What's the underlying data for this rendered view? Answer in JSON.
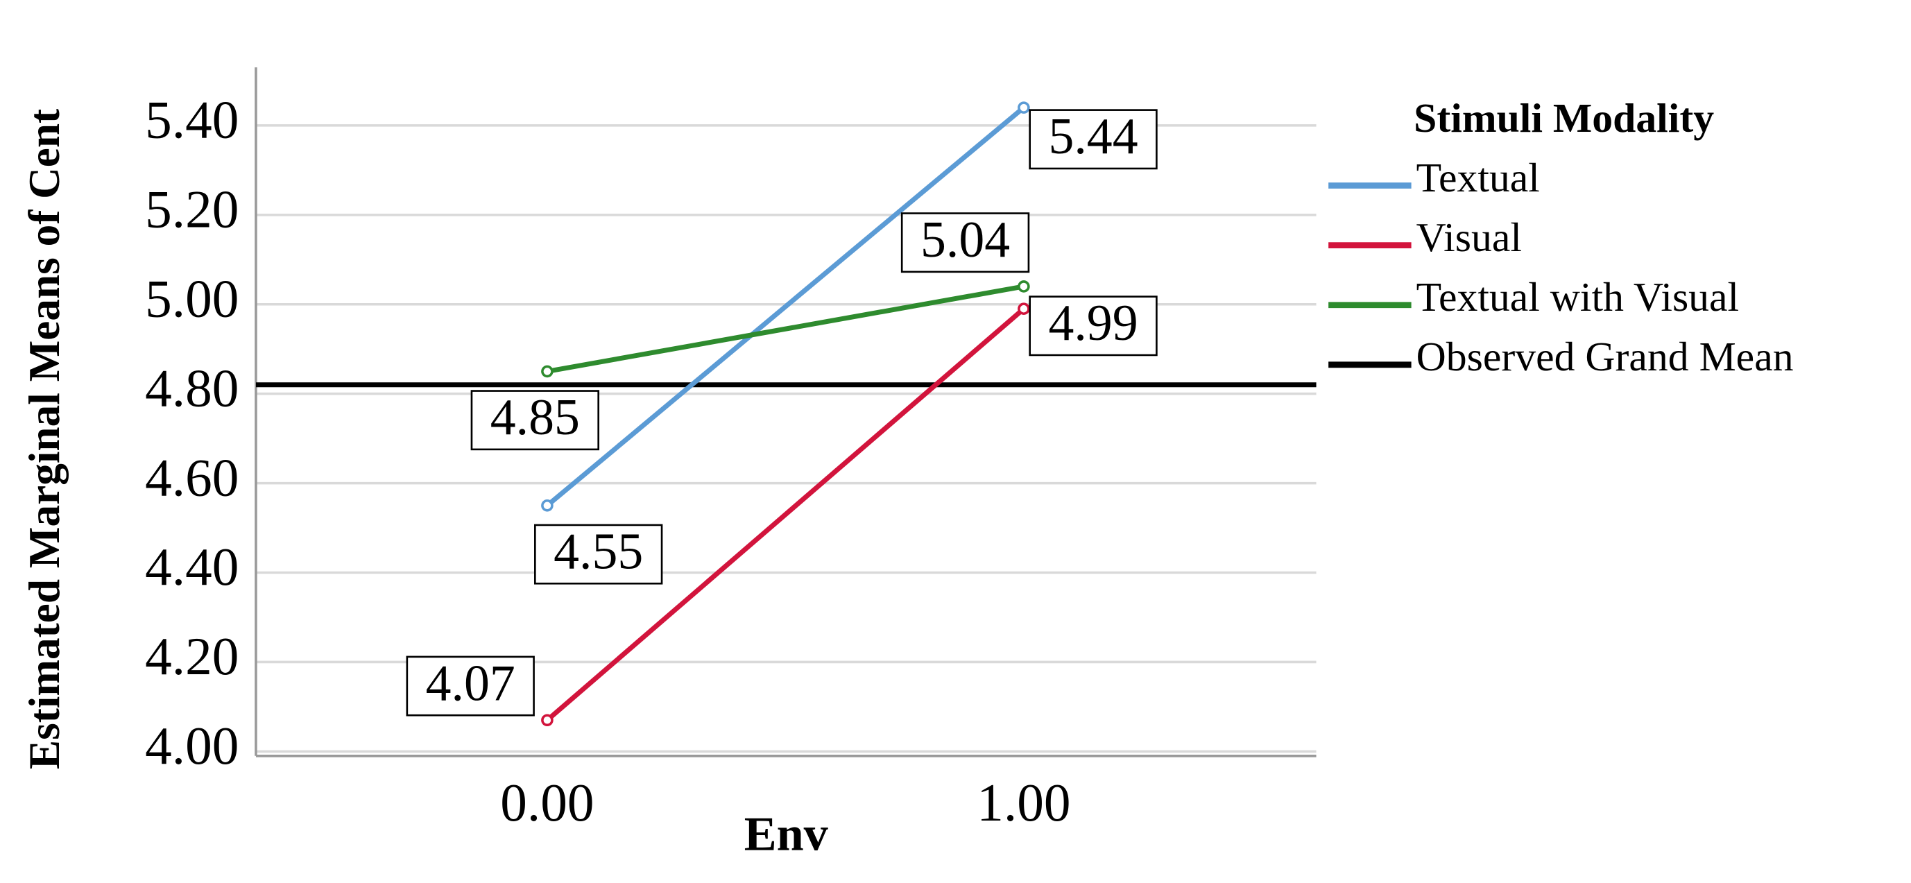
{
  "chart_data": {
    "type": "line",
    "x_label": "Env",
    "y_label": "Estimated Marginal Means of Cent",
    "legend_title": "Stimuli Modality",
    "categories": [
      "0.00",
      "1.00"
    ],
    "series": [
      {
        "name": "Textual",
        "color": "#5b9bd5",
        "values": [
          4.55,
          5.44
        ]
      },
      {
        "name": "Visual",
        "color": "#d2143c",
        "values": [
          4.07,
          4.99
        ]
      },
      {
        "name": "Textual with Visual",
        "color": "#2e8b2e",
        "values": [
          4.85,
          5.04
        ]
      }
    ],
    "reference_line": {
      "name": "Observed Grand Mean",
      "color": "#000000",
      "value": 4.82
    },
    "ylim": [
      3.99,
      5.53
    ],
    "yticks": [
      {
        "value": 4,
        "label": "4.00"
      },
      {
        "value": 4.2,
        "label": "4.20"
      },
      {
        "value": 4.4,
        "label": "4.40"
      },
      {
        "value": 4.6,
        "label": "4.60"
      },
      {
        "value": 4.8,
        "label": "4.80"
      },
      {
        "value": 5,
        "label": "5.00"
      },
      {
        "value": 5.2,
        "label": "5.20"
      },
      {
        "value": 5.4,
        "label": "5.40"
      }
    ],
    "grid": true,
    "legend": "right"
  }
}
